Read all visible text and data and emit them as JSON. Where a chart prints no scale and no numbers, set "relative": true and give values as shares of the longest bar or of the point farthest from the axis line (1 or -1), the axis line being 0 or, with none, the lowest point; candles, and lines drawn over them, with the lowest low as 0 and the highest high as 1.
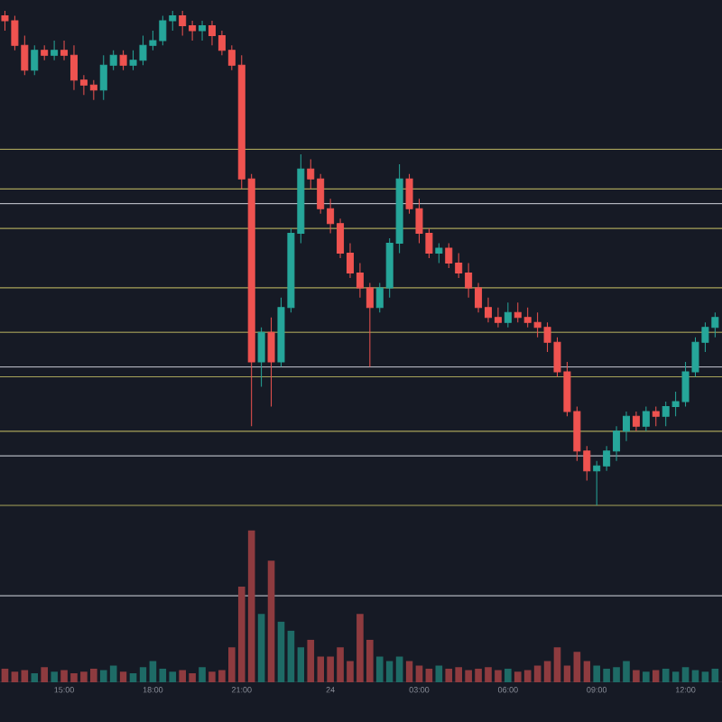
{
  "chart_data": [
    {
      "type": "candlestick",
      "relative": true,
      "tick_labels": false,
      "categories": [
        null,
        null,
        null,
        null,
        null,
        null,
        null,
        null,
        null,
        null,
        null,
        null,
        null,
        null,
        null,
        null,
        null,
        null,
        null,
        null,
        null,
        null,
        null,
        null,
        null,
        null,
        null,
        null,
        null,
        null,
        null,
        null,
        null,
        null,
        null,
        null,
        null,
        null,
        null,
        null,
        null,
        null,
        null,
        null,
        null,
        null,
        null,
        null,
        null,
        null,
        null,
        null,
        null,
        null,
        null,
        null,
        null,
        null,
        null,
        null,
        null,
        null,
        null,
        null,
        null,
        null,
        null,
        null,
        null,
        null,
        null,
        null,
        null
      ],
      "ohlc": [
        [
          0.99,
          1.0,
          0.96,
          0.98
        ],
        [
          0.98,
          0.99,
          0.92,
          0.93
        ],
        [
          0.93,
          0.95,
          0.87,
          0.88
        ],
        [
          0.88,
          0.93,
          0.87,
          0.92
        ],
        [
          0.92,
          0.93,
          0.9,
          0.91
        ],
        [
          0.91,
          0.94,
          0.9,
          0.92
        ],
        [
          0.92,
          0.94,
          0.9,
          0.91
        ],
        [
          0.91,
          0.93,
          0.84,
          0.86
        ],
        [
          0.86,
          0.87,
          0.83,
          0.85
        ],
        [
          0.85,
          0.86,
          0.82,
          0.84
        ],
        [
          0.84,
          0.91,
          0.82,
          0.89
        ],
        [
          0.89,
          0.92,
          0.88,
          0.91
        ],
        [
          0.91,
          0.92,
          0.88,
          0.89
        ],
        [
          0.89,
          0.92,
          0.88,
          0.9
        ],
        [
          0.9,
          0.95,
          0.89,
          0.93
        ],
        [
          0.93,
          0.96,
          0.92,
          0.94
        ],
        [
          0.94,
          0.99,
          0.93,
          0.98
        ],
        [
          0.98,
          1.0,
          0.96,
          0.99
        ],
        [
          0.99,
          1.0,
          0.95,
          0.97
        ],
        [
          0.97,
          0.98,
          0.94,
          0.96
        ],
        [
          0.96,
          0.98,
          0.94,
          0.97
        ],
        [
          0.97,
          0.98,
          0.93,
          0.95
        ],
        [
          0.95,
          0.96,
          0.91,
          0.92
        ],
        [
          0.92,
          0.93,
          0.88,
          0.89
        ],
        [
          0.89,
          0.91,
          0.64,
          0.66
        ],
        [
          0.66,
          0.67,
          0.16,
          0.29
        ],
        [
          0.29,
          0.36,
          0.24,
          0.35
        ],
        [
          0.35,
          0.38,
          0.2,
          0.29
        ],
        [
          0.29,
          0.42,
          0.28,
          0.4
        ],
        [
          0.4,
          0.56,
          0.39,
          0.55
        ],
        [
          0.55,
          0.71,
          0.53,
          0.68
        ],
        [
          0.68,
          0.7,
          0.64,
          0.66
        ],
        [
          0.66,
          0.67,
          0.59,
          0.6
        ],
        [
          0.6,
          0.62,
          0.55,
          0.57
        ],
        [
          0.57,
          0.58,
          0.5,
          0.51
        ],
        [
          0.51,
          0.53,
          0.46,
          0.47
        ],
        [
          0.47,
          0.49,
          0.42,
          0.44
        ],
        [
          0.44,
          0.45,
          0.28,
          0.4
        ],
        [
          0.4,
          0.45,
          0.39,
          0.44
        ],
        [
          0.44,
          0.54,
          0.42,
          0.53
        ],
        [
          0.53,
          0.69,
          0.51,
          0.66
        ],
        [
          0.66,
          0.67,
          0.59,
          0.6
        ],
        [
          0.6,
          0.62,
          0.53,
          0.55
        ],
        [
          0.55,
          0.56,
          0.5,
          0.51
        ],
        [
          0.51,
          0.53,
          0.49,
          0.52
        ],
        [
          0.52,
          0.53,
          0.48,
          0.49
        ],
        [
          0.49,
          0.51,
          0.46,
          0.47
        ],
        [
          0.47,
          0.49,
          0.42,
          0.44
        ],
        [
          0.44,
          0.45,
          0.39,
          0.4
        ],
        [
          0.4,
          0.42,
          0.37,
          0.38
        ],
        [
          0.38,
          0.4,
          0.36,
          0.37
        ],
        [
          0.37,
          0.41,
          0.36,
          0.39
        ],
        [
          0.39,
          0.41,
          0.37,
          0.38
        ],
        [
          0.38,
          0.4,
          0.36,
          0.37
        ],
        [
          0.37,
          0.39,
          0.34,
          0.36
        ],
        [
          0.36,
          0.37,
          0.31,
          0.33
        ],
        [
          0.33,
          0.34,
          0.26,
          0.27
        ],
        [
          0.27,
          0.29,
          0.18,
          0.19
        ],
        [
          0.19,
          0.2,
          0.09,
          0.11
        ],
        [
          0.11,
          0.12,
          0.05,
          0.07
        ],
        [
          0.07,
          0.09,
          0.0,
          0.08
        ],
        [
          0.08,
          0.12,
          0.07,
          0.11
        ],
        [
          0.11,
          0.16,
          0.09,
          0.15
        ],
        [
          0.15,
          0.19,
          0.13,
          0.18
        ],
        [
          0.18,
          0.19,
          0.15,
          0.16
        ],
        [
          0.16,
          0.2,
          0.15,
          0.19
        ],
        [
          0.19,
          0.2,
          0.16,
          0.18
        ],
        [
          0.18,
          0.21,
          0.16,
          0.2
        ],
        [
          0.2,
          0.23,
          0.18,
          0.21
        ],
        [
          0.21,
          0.29,
          0.2,
          0.27
        ],
        [
          0.27,
          0.34,
          0.26,
          0.33
        ],
        [
          0.33,
          0.37,
          0.31,
          0.36
        ],
        [
          0.36,
          0.39,
          0.34,
          0.38
        ]
      ],
      "ref_lines": [
        {
          "axis": "y",
          "value": 0.61,
          "color": "#b2b5be"
        },
        {
          "axis": "y",
          "value": 0.28,
          "color": "#b2b5be"
        },
        {
          "axis": "y",
          "value": 0.1,
          "color": "#b2b5be"
        },
        {
          "axis": "y",
          "value": 0.72,
          "color": "#a8a35a"
        },
        {
          "axis": "y",
          "value": 0.64,
          "color": "#a8a35a"
        },
        {
          "axis": "y",
          "value": 0.56,
          "color": "#a8a35a"
        },
        {
          "axis": "y",
          "value": 0.44,
          "color": "#a8a35a"
        },
        {
          "axis": "y",
          "value": 0.35,
          "color": "#a8a35a"
        },
        {
          "axis": "y",
          "value": 0.26,
          "color": "#a8a35a"
        },
        {
          "axis": "y",
          "value": 0.15,
          "color": "#a8a35a"
        },
        {
          "axis": "y",
          "value": 0.0,
          "color": "#a8a35a"
        }
      ]
    },
    {
      "type": "bar",
      "relative": true,
      "tick_labels": "x",
      "categories": [
        null,
        null,
        null,
        null,
        null,
        null,
        "15:00",
        null,
        null,
        null,
        null,
        null,
        null,
        null,
        null,
        "18:00",
        null,
        null,
        null,
        null,
        null,
        null,
        null,
        null,
        "21:00",
        null,
        null,
        null,
        null,
        null,
        null,
        null,
        null,
        "24",
        null,
        null,
        null,
        null,
        null,
        null,
        null,
        null,
        "03:00",
        null,
        null,
        null,
        null,
        null,
        null,
        null,
        null,
        "06:00",
        null,
        null,
        null,
        null,
        null,
        null,
        null,
        null,
        "09:00",
        null,
        null,
        null,
        null,
        null,
        null,
        null,
        null,
        "12:00",
        null,
        null,
        null
      ],
      "values": [
        0.09,
        0.07,
        0.08,
        0.06,
        0.1,
        0.07,
        0.08,
        0.06,
        0.07,
        0.09,
        0.08,
        0.11,
        0.07,
        0.06,
        0.1,
        0.14,
        0.09,
        0.07,
        0.08,
        0.06,
        0.1,
        0.07,
        0.08,
        0.23,
        0.63,
        1.0,
        0.45,
        0.8,
        0.4,
        0.34,
        0.23,
        0.28,
        0.17,
        0.17,
        0.23,
        0.14,
        0.45,
        0.28,
        0.17,
        0.14,
        0.17,
        0.14,
        0.11,
        0.09,
        0.11,
        0.09,
        0.1,
        0.08,
        0.09,
        0.1,
        0.08,
        0.09,
        0.07,
        0.08,
        0.11,
        0.14,
        0.23,
        0.11,
        0.2,
        0.14,
        0.11,
        0.09,
        0.1,
        0.14,
        0.08,
        0.07,
        0.08,
        0.09,
        0.07,
        0.1,
        0.08,
        0.07,
        0.09
      ],
      "colors": [
        "#8e3b3f",
        "#8e3b3f",
        "#8e3b3f",
        "#1e6b66",
        "#8e3b3f",
        "#1e6b66",
        "#8e3b3f",
        "#8e3b3f",
        "#8e3b3f",
        "#8e3b3f",
        "#1e6b66",
        "#1e6b66",
        "#8e3b3f",
        "#1e6b66",
        "#1e6b66",
        "#1e6b66",
        "#1e6b66",
        "#1e6b66",
        "#8e3b3f",
        "#8e3b3f",
        "#1e6b66",
        "#8e3b3f",
        "#8e3b3f",
        "#8e3b3f",
        "#8e3b3f",
        "#8e3b3f",
        "#1e6b66",
        "#8e3b3f",
        "#1e6b66",
        "#1e6b66",
        "#1e6b66",
        "#8e3b3f",
        "#8e3b3f",
        "#8e3b3f",
        "#8e3b3f",
        "#8e3b3f",
        "#8e3b3f",
        "#8e3b3f",
        "#1e6b66",
        "#1e6b66",
        "#1e6b66",
        "#8e3b3f",
        "#8e3b3f",
        "#8e3b3f",
        "#1e6b66",
        "#8e3b3f",
        "#8e3b3f",
        "#8e3b3f",
        "#8e3b3f",
        "#8e3b3f",
        "#8e3b3f",
        "#1e6b66",
        "#8e3b3f",
        "#8e3b3f",
        "#8e3b3f",
        "#8e3b3f",
        "#8e3b3f",
        "#8e3b3f",
        "#8e3b3f",
        "#8e3b3f",
        "#1e6b66",
        "#1e6b66",
        "#1e6b66",
        "#1e6b66",
        "#8e3b3f",
        "#1e6b66",
        "#8e3b3f",
        "#1e6b66",
        "#1e6b66",
        "#1e6b66",
        "#1e6b66",
        "#1e6b66",
        "#1e6b66"
      ],
      "ref_lines": [
        {
          "axis": "y",
          "value": 0.57,
          "color": "#b2b5be"
        }
      ]
    }
  ]
}
